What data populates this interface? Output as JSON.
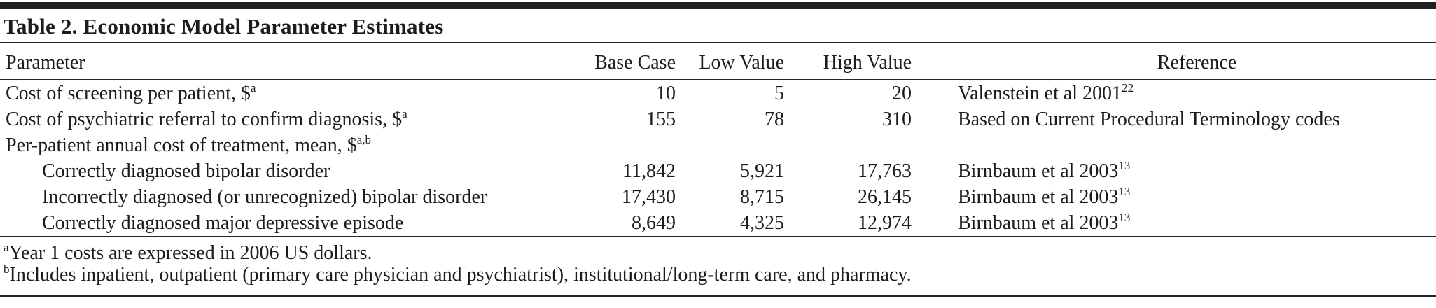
{
  "table": {
    "title": "Table 2. Economic Model Parameter Estimates",
    "columns": [
      "Parameter",
      "Base Case",
      "Low Value",
      "High Value",
      "Reference"
    ],
    "rows": [
      {
        "parameter": "Cost of screening per patient, $",
        "parameter_sup": "a",
        "indent": false,
        "base_case": "10",
        "low_value": "5",
        "high_value": "20",
        "reference": "Valenstein et al 2001",
        "reference_sup": "22"
      },
      {
        "parameter": "Cost of psychiatric referral to confirm diagnosis, $",
        "parameter_sup": "a",
        "indent": false,
        "base_case": "155",
        "low_value": "78",
        "high_value": "310",
        "reference": "Based on Current Procedural Terminology codes",
        "reference_sup": ""
      },
      {
        "parameter": "Per-patient annual cost of treatment, mean, $",
        "parameter_sup": "a,b",
        "indent": false,
        "base_case": "",
        "low_value": "",
        "high_value": "",
        "reference": "",
        "reference_sup": ""
      },
      {
        "parameter": "Correctly diagnosed bipolar disorder",
        "parameter_sup": "",
        "indent": true,
        "base_case": "11,842",
        "low_value": "5,921",
        "high_value": "17,763",
        "reference": "Birnbaum et al 2003",
        "reference_sup": "13"
      },
      {
        "parameter": "Incorrectly diagnosed (or unrecognized) bipolar disorder",
        "parameter_sup": "",
        "indent": true,
        "base_case": "17,430",
        "low_value": "8,715",
        "high_value": "26,145",
        "reference": "Birnbaum et al 2003",
        "reference_sup": "13"
      },
      {
        "parameter": "Correctly diagnosed major depressive episode",
        "parameter_sup": "",
        "indent": true,
        "base_case": "8,649",
        "low_value": "4,325",
        "high_value": "12,974",
        "reference": "Birnbaum et al 2003",
        "reference_sup": "13"
      }
    ],
    "footnotes": [
      {
        "marker": "a",
        "text": "Year 1 costs are expressed in 2006 US dollars."
      },
      {
        "marker": "b",
        "text": "Includes inpatient, outpatient (primary care physician and psychiatrist), institutional/long-term care, and pharmacy."
      }
    ]
  },
  "colors": {
    "text": "#1c1c1c",
    "rule": "#262626",
    "background": "#ffffff"
  }
}
